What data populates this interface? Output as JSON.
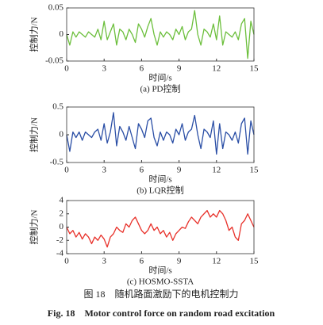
{
  "chart_data": [
    {
      "type": "line",
      "ylabel": "控制力/N",
      "xlabel": "时间/s",
      "caption": "(a) PD控制",
      "x": [
        0,
        0.25,
        0.5,
        0.75,
        1,
        1.25,
        1.5,
        1.75,
        2,
        2.25,
        2.5,
        2.75,
        3,
        3.25,
        3.5,
        3.75,
        4,
        4.25,
        4.5,
        4.75,
        5,
        5.25,
        5.5,
        5.75,
        6,
        6.25,
        6.5,
        6.75,
        7,
        7.25,
        7.5,
        7.75,
        8,
        8.25,
        8.5,
        8.75,
        9,
        9.25,
        9.5,
        9.75,
        10,
        10.25,
        10.5,
        10.75,
        11,
        11.25,
        11.5,
        11.75,
        12,
        12.25,
        12.5,
        12.75,
        13,
        13.25,
        13.5,
        13.75,
        14,
        14.25,
        14.5,
        14.75,
        15
      ],
      "series": [
        {
          "color": "#6cbf3c",
          "values": [
            0,
            -0.02,
            0.005,
            -0.005,
            0.005,
            0,
            -0.005,
            0.005,
            0,
            -0.005,
            0.01,
            -0.01,
            0.025,
            -0.01,
            0.005,
            0.02,
            -0.02,
            0.01,
            0.005,
            -0.01,
            0.01,
            0,
            -0.015,
            0.02,
            0.01,
            -0.005,
            0.015,
            0.03,
            0,
            -0.02,
            0.005,
            -0.005,
            0.005,
            0,
            -0.01,
            0.01,
            0,
            0.015,
            -0.01,
            0.005,
            0.01,
            0.045,
            0,
            -0.02,
            0.01,
            0.005,
            -0.005,
            0.02,
            -0.01,
            0.035,
            -0.02,
            0.005,
            0,
            -0.005,
            0.005,
            -0.01,
            0.02,
            0.03,
            -0.045,
            0.025,
            0
          ]
        }
      ],
      "xlim": [
        0,
        15
      ],
      "xticks": [
        0,
        3,
        6,
        9,
        12,
        15
      ],
      "ylim": [
        -0.05,
        0.05
      ],
      "yticks": [
        -0.05,
        0,
        0.05
      ]
    },
    {
      "type": "line",
      "ylabel": "控制力/N",
      "xlabel": "时间/s",
      "caption": "(b) LQR控制",
      "x": [
        0,
        0.25,
        0.5,
        0.75,
        1,
        1.25,
        1.5,
        1.75,
        2,
        2.25,
        2.5,
        2.75,
        3,
        3.25,
        3.5,
        3.75,
        4,
        4.25,
        4.5,
        4.75,
        5,
        5.25,
        5.5,
        5.75,
        6,
        6.25,
        6.5,
        6.75,
        7,
        7.25,
        7.5,
        7.75,
        8,
        8.25,
        8.5,
        8.75,
        9,
        9.25,
        9.5,
        9.75,
        10,
        10.25,
        10.5,
        10.75,
        11,
        11.25,
        11.5,
        11.75,
        12,
        12.25,
        12.5,
        12.75,
        13,
        13.25,
        13.5,
        13.75,
        14,
        14.25,
        14.5,
        14.75,
        15
      ],
      "series": [
        {
          "color": "#2b4fa6",
          "values": [
            0,
            -0.3,
            0.05,
            -0.05,
            0.05,
            -0.1,
            0.05,
            0,
            -0.05,
            0.05,
            0.1,
            -0.1,
            0.2,
            -0.15,
            0.05,
            0.4,
            -0.2,
            0.15,
            0.05,
            -0.1,
            0.15,
            -0.05,
            -0.25,
            0.2,
            0.1,
            -0.05,
            0.25,
            0.3,
            -0.05,
            -0.2,
            0.05,
            -0.1,
            0.05,
            0,
            -0.15,
            0.1,
            0,
            0.2,
            -0.1,
            0.05,
            0.1,
            0.35,
            0,
            -0.25,
            0.1,
            0.05,
            -0.05,
            0.25,
            -0.35,
            0.2,
            -0.25,
            0.05,
            0,
            -0.1,
            0.05,
            -0.15,
            0.2,
            0.3,
            -0.35,
            0.25,
            0
          ]
        }
      ],
      "xlim": [
        0,
        15
      ],
      "xticks": [
        0,
        3,
        6,
        9,
        12,
        15
      ],
      "ylim": [
        -0.5,
        0.5
      ],
      "yticks": [
        -0.5,
        0,
        0.5
      ]
    },
    {
      "type": "line",
      "ylabel": "控制力/N",
      "xlabel": "时间/s",
      "caption": "(c) HOSMO-SSTA",
      "x": [
        0,
        0.25,
        0.5,
        0.75,
        1,
        1.25,
        1.5,
        1.75,
        2,
        2.25,
        2.5,
        2.75,
        3,
        3.25,
        3.5,
        3.75,
        4,
        4.25,
        4.5,
        4.75,
        5,
        5.25,
        5.5,
        5.75,
        6,
        6.25,
        6.5,
        6.75,
        7,
        7.25,
        7.5,
        7.75,
        8,
        8.25,
        8.5,
        8.75,
        9,
        9.25,
        9.5,
        9.75,
        10,
        10.25,
        10.5,
        10.75,
        11,
        11.25,
        11.5,
        11.75,
        12,
        12.25,
        12.5,
        12.75,
        13,
        13.25,
        13.5,
        13.75,
        14,
        14.25,
        14.5,
        14.75,
        15
      ],
      "series": [
        {
          "color": "#e8312a",
          "values": [
            0,
            -1,
            -0.5,
            -1.5,
            -0.8,
            -1.8,
            -1,
            -1.5,
            -2.5,
            -1.5,
            -2,
            -1.2,
            -1.8,
            -3,
            -1.5,
            -1,
            0,
            -0.5,
            -0.8,
            0.5,
            0,
            1,
            1.5,
            0.5,
            -0.5,
            -1,
            -0.5,
            0.5,
            -0.5,
            0,
            -1,
            -0.5,
            -1.5,
            -0.8,
            -2,
            -1,
            -0.5,
            0,
            -0.2,
            0.8,
            1.5,
            1,
            0.5,
            1.5,
            2,
            2.5,
            1.5,
            2,
            1.5,
            2.5,
            2,
            1,
            -0.5,
            0,
            -1.5,
            -2,
            0.5,
            1,
            2,
            1,
            0
          ]
        }
      ],
      "xlim": [
        0,
        15
      ],
      "xticks": [
        0,
        3,
        6,
        9,
        12,
        15
      ],
      "ylim": [
        -4,
        4
      ],
      "yticks": [
        -4,
        -2,
        0,
        2,
        4
      ]
    }
  ],
  "figure_caption_zh": "图 18　随机路面激励下的电机控制力",
  "figure_caption_en": "Fig. 18　Motor control force on random road excitation"
}
